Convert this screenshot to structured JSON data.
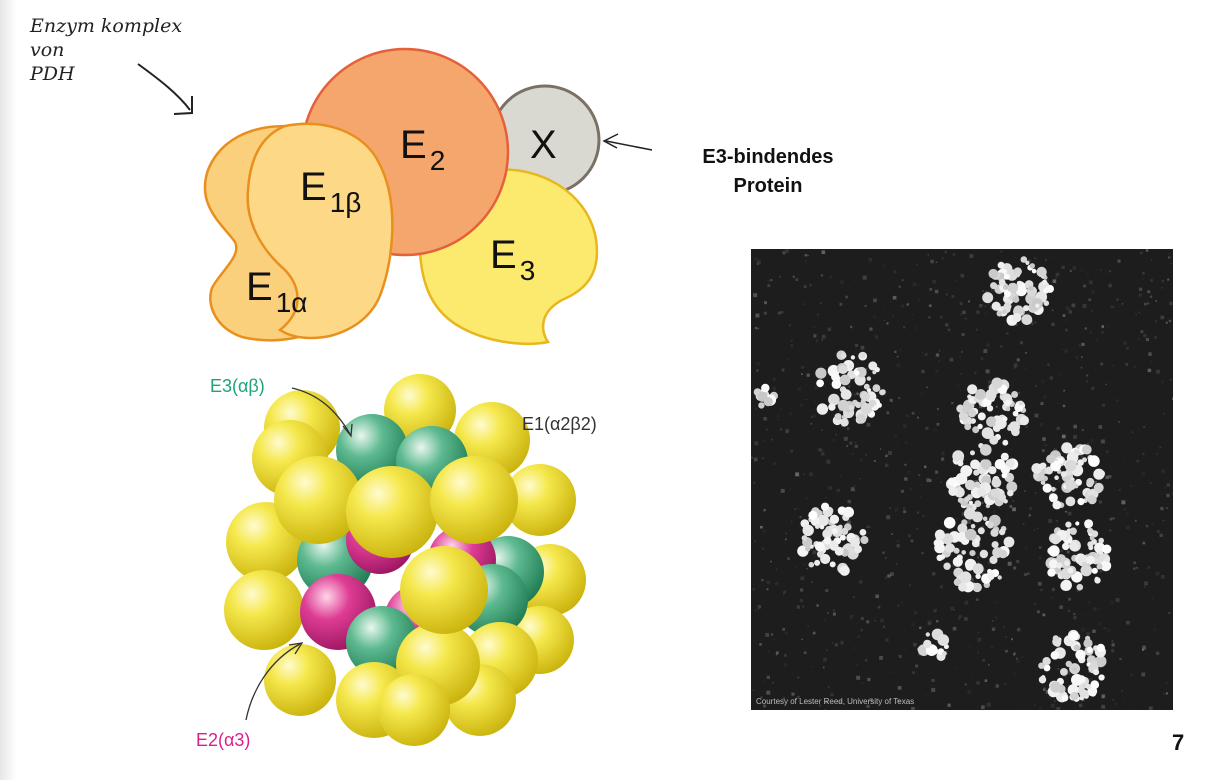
{
  "header_fragment": "",
  "handwriting": {
    "lines": [
      "Enzym komplex",
      "von",
      "PDH"
    ]
  },
  "schematic": {
    "labels": {
      "e2": "E",
      "e2_sub": "2",
      "x": "X",
      "e1b": "E",
      "e1b_sub": "1β",
      "e1a": "E",
      "e1a_sub": "1α",
      "e3": "E",
      "e3_sub": "3"
    },
    "callout_lines": [
      "E3-bindendes",
      "Protein"
    ]
  },
  "model": {
    "labels": {
      "e3": "E3(αβ)",
      "e1": "E1(α2β2)",
      "e2": "E2(α3)"
    },
    "colors": {
      "yellow": "#F5E84C",
      "green": "#5DB98F",
      "pink": "#DE3D94"
    }
  },
  "micrograph": {
    "credit": "Courtesy of Lester Reed, University of Texas"
  },
  "page_number": "7",
  "colors": {
    "e2_fill": "#F5A66C",
    "e2_stroke": "#E5603A",
    "x_fill": "#D9D9D2",
    "x_stroke": "#7A7066",
    "e1_fill": "#FBD07C",
    "e1_stroke": "#E98F1D",
    "e3_fill": "#FBEA6E",
    "e3_stroke": "#E8B71E",
    "label_green": "#1FA27C",
    "label_magenta": "#DC1E8C",
    "label_dark": "#333333"
  }
}
